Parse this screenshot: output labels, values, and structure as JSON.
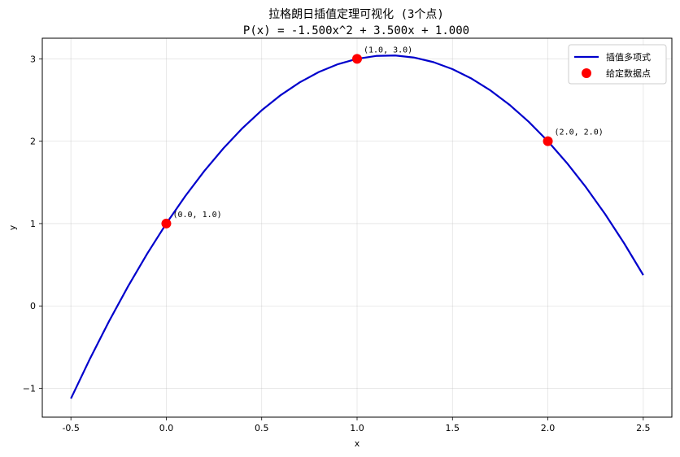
{
  "chart_data": {
    "type": "line",
    "title": "拉格朗日插值定理可视化 (3个点)",
    "subtitle": "P(x) = -1.500x^2 + 3.500x + 1.000",
    "xlabel": "x",
    "ylabel": "y",
    "xlim": [
      -0.65,
      2.65
    ],
    "ylim": [
      -1.35,
      3.25
    ],
    "xticks": [
      -0.5,
      0.0,
      0.5,
      1.0,
      1.5,
      2.0,
      2.5
    ],
    "xtick_labels": [
      "-0.5",
      "0.0",
      "0.5",
      "1.0",
      "1.5",
      "2.0",
      "2.5"
    ],
    "yticks": [
      -1,
      0,
      1,
      2,
      3
    ],
    "ytick_labels": [
      "−1",
      "0",
      "1",
      "2",
      "3"
    ],
    "grid": true,
    "legend_position": "top-right",
    "series": [
      {
        "name": "插值多项式",
        "type": "line",
        "color": "#0000cc",
        "x": [
          -0.5,
          -0.4,
          -0.3,
          -0.2,
          -0.1,
          0.0,
          0.1,
          0.2,
          0.3,
          0.4,
          0.5,
          0.6,
          0.7,
          0.8,
          0.9,
          1.0,
          1.1,
          1.2,
          1.3,
          1.4,
          1.5,
          1.6,
          1.7,
          1.8,
          1.9,
          2.0,
          2.1,
          2.2,
          2.3,
          2.4,
          2.5
        ],
        "y": [
          -1.125,
          -0.64,
          -0.185,
          0.24,
          0.635,
          1.0,
          1.335,
          1.64,
          1.915,
          2.16,
          2.375,
          2.56,
          2.715,
          2.84,
          2.935,
          3.0,
          3.035,
          3.04,
          3.015,
          2.96,
          2.875,
          2.76,
          2.615,
          2.44,
          2.235,
          2.0,
          1.735,
          1.44,
          1.115,
          0.76,
          0.375
        ]
      },
      {
        "name": "给定数据点",
        "type": "scatter",
        "color": "#ff0000",
        "x": [
          0.0,
          1.0,
          2.0
        ],
        "y": [
          1.0,
          3.0,
          2.0
        ],
        "labels": [
          "(0.0, 1.0)",
          "(1.0, 3.0)",
          "(2.0, 2.0)"
        ]
      }
    ]
  }
}
